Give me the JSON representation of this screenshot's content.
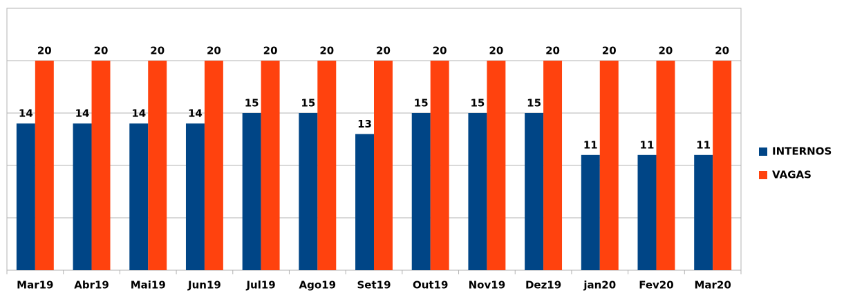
{
  "chart_data": {
    "type": "bar",
    "categories": [
      "Mar19",
      "Abr19",
      "Mai19",
      "Jun19",
      "Jul19",
      "Ago19",
      "Set19",
      "Out19",
      "Nov19",
      "Dez19",
      "jan20",
      "Fev20",
      "Mar20"
    ],
    "series": [
      {
        "name": "INTERNOS",
        "color": "#004586",
        "values": [
          14,
          14,
          14,
          14,
          15,
          15,
          13,
          15,
          15,
          15,
          11,
          11,
          11
        ]
      },
      {
        "name": "VAGAS",
        "color": "#ff420e",
        "values": [
          20,
          20,
          20,
          20,
          20,
          20,
          20,
          20,
          20,
          20,
          20,
          20,
          20
        ]
      }
    ],
    "ylim": [
      0,
      25
    ],
    "yticks": [
      0,
      5,
      10,
      15,
      20,
      25
    ],
    "ytick_labels": false,
    "grid": true,
    "legend": "right"
  }
}
